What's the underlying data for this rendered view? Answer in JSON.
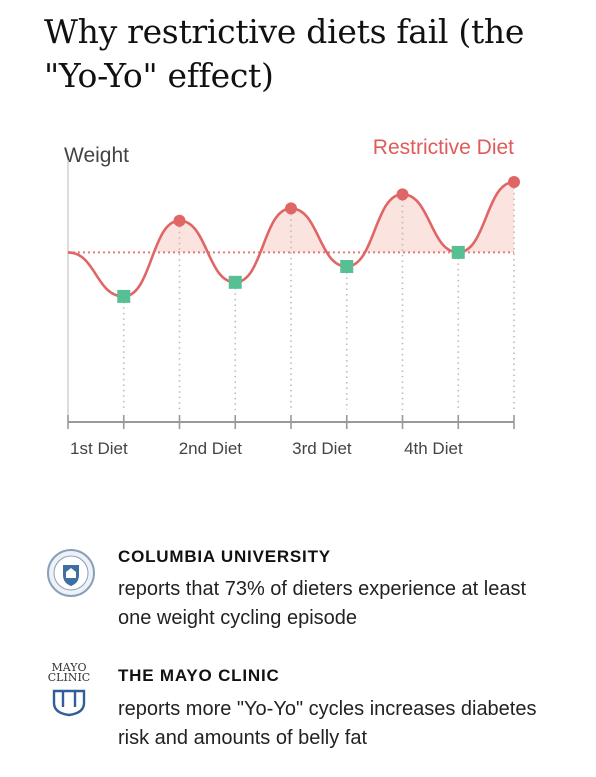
{
  "title": "Why restrictive diets fail (the \"Yo-Yo\" effect)",
  "chart_data": {
    "type": "line",
    "ylabel": "Weight",
    "series_label": "Restrictive Diet",
    "categories": [
      "1st Diet",
      "2nd Diet",
      "3rd Diet",
      "4th Diet"
    ],
    "baseline": 0.6,
    "colors": {
      "line": "#e06666",
      "fill": "#fbe3e0",
      "low": "#57bf94",
      "axis": "#999999",
      "dots": "#bbbbbb",
      "label": "#444444",
      "title_text": "#e05a5a"
    },
    "x": [
      0,
      1,
      2,
      3,
      4,
      5,
      6,
      7,
      8
    ],
    "values": [
      0.6,
      0.35,
      0.78,
      0.43,
      0.85,
      0.52,
      0.93,
      0.6,
      1.0
    ],
    "point_types": [
      "start",
      "low",
      "high",
      "low",
      "high",
      "low",
      "high",
      "low",
      "high"
    ]
  },
  "sources": [
    {
      "name": "COLUMBIA UNIVERSITY",
      "text": "reports that 73% of dieters experience at least one weight cycling episode",
      "logo_icon": "columbia-seal-icon"
    },
    {
      "name": "THE MAYO CLINIC",
      "text": "reports more \"Yo-Yo\" cycles increases diabetes risk and amounts of belly fat",
      "logo_icon": "mayo-clinic-logo-icon",
      "logo_text_1": "MAYO",
      "logo_text_2": "CLINIC"
    }
  ]
}
